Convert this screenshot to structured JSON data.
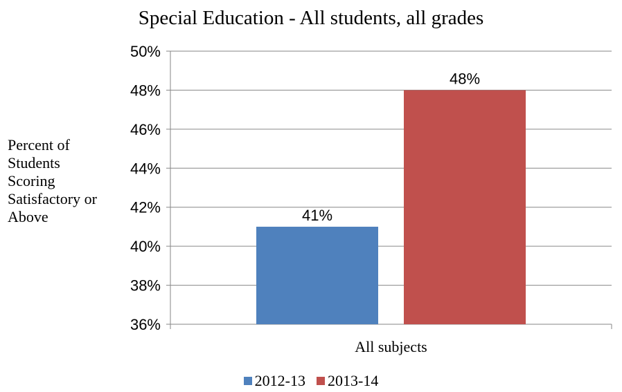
{
  "chart_data": {
    "type": "bar",
    "title": "Special Education - All students, all grades",
    "ylabel": "Percent of\nStudents\nScoring\nSatisfactory or\nAbove",
    "xlabel": "",
    "categories": [
      "All subjects"
    ],
    "series": [
      {
        "name": "2012-13",
        "values": [
          41
        ],
        "color": "#4f81bd",
        "label": "41%"
      },
      {
        "name": "2013-14",
        "values": [
          48
        ],
        "color": "#c0504d",
        "label": "48%"
      }
    ],
    "ylim": [
      36,
      50
    ],
    "yticks": [
      36,
      38,
      40,
      42,
      44,
      46,
      48,
      50
    ],
    "ytick_labels": [
      "36%",
      "38%",
      "40%",
      "42%",
      "44%",
      "46%",
      "48%",
      "50%"
    ],
    "grid": true,
    "legend": "bottom"
  }
}
